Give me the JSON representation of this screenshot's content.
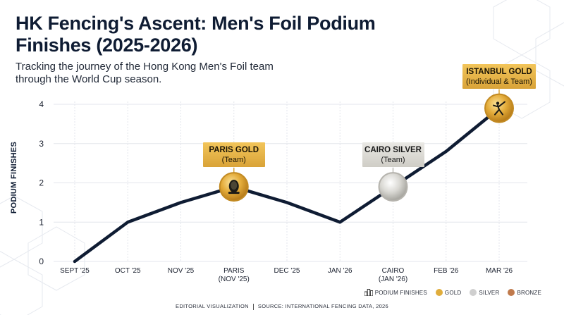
{
  "header": {
    "title": "HK Fencing's Ascent: Men's Foil Podium Finishes (2025-2026)",
    "subtitle": "Tracking the journey of the Hong Kong Men's Foil team through the World Cup season."
  },
  "chart_data": {
    "type": "line",
    "categories": [
      "SEPT '25",
      "OCT '25",
      "NOV '25",
      "PARIS\n(NOV '25)",
      "DEC '25",
      "JAN '26",
      "CAIRO\n(JAN '26)",
      "FEB '26",
      "MAR '26"
    ],
    "series": [
      {
        "values": [
          0,
          1,
          1.5,
          1.9,
          1.5,
          1,
          1.9,
          2.8,
          3.9
        ]
      }
    ],
    "xlabel": "",
    "ylabel": "PODIUM FINISHES",
    "ylim": [
      0,
      4
    ],
    "yticks": [
      0,
      1,
      2,
      3,
      4
    ],
    "grid": true,
    "line_color": "#0f1c33",
    "annotations": [
      {
        "index": 3,
        "title": "PARIS GOLD",
        "detail": "(Team)",
        "medal": "gold",
        "icon": "fencer-mask-icon"
      },
      {
        "index": 6,
        "title": "CAIRO SILVER",
        "detail": "(Team)",
        "medal": "silver",
        "icon": ""
      },
      {
        "index": 8,
        "title": "ISTANBUL GOLD",
        "detail": "(Individual & Team)",
        "medal": "gold",
        "icon": "fencer-lunge-icon"
      }
    ]
  },
  "legend": {
    "podium_label": "PODIUM FINISHES",
    "gold_label": "GOLD",
    "silver_label": "SILVER",
    "bronze_label": "BRONZE",
    "gold_color": "#e0ad3c",
    "silver_color": "#cfcfcf",
    "bronze_color": "#c07a4c"
  },
  "footer": {
    "left": "EDITORIAL VISUALIZATION",
    "right": "SOURCE: INTERNATIONAL FENCING DATA, 2026"
  }
}
